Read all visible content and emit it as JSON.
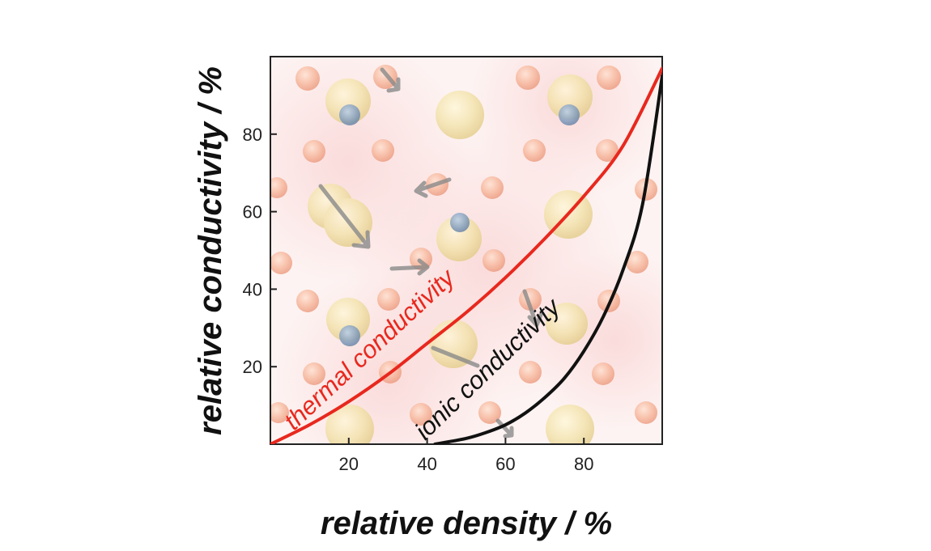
{
  "chart_data": {
    "type": "line",
    "xlabel": "relative density / %",
    "ylabel": "relative conductivity / %",
    "xlim": [
      0,
      100
    ],
    "ylim": [
      0,
      100
    ],
    "x_ticks": [
      20,
      40,
      60,
      80
    ],
    "y_ticks": [
      20,
      40,
      60,
      80
    ],
    "grid": false,
    "legend": "none",
    "series": [
      {
        "name": "thermal conductivity",
        "color": "#e8281e",
        "x": [
          0,
          10,
          20,
          30,
          40,
          50,
          60,
          70,
          80,
          90,
          100
        ],
        "y": [
          0,
          5,
          11,
          18,
          26,
          34,
          43,
          53,
          64,
          77,
          97
        ]
      },
      {
        "name": "ionic conductivity",
        "color": "#111111",
        "x": [
          42,
          50,
          55,
          60,
          65,
          70,
          75,
          80,
          85,
          90,
          95,
          100
        ],
        "y": [
          0,
          1.5,
          3,
          5,
          8,
          12,
          17,
          24,
          33,
          45,
          62,
          95
        ]
      }
    ]
  }
}
